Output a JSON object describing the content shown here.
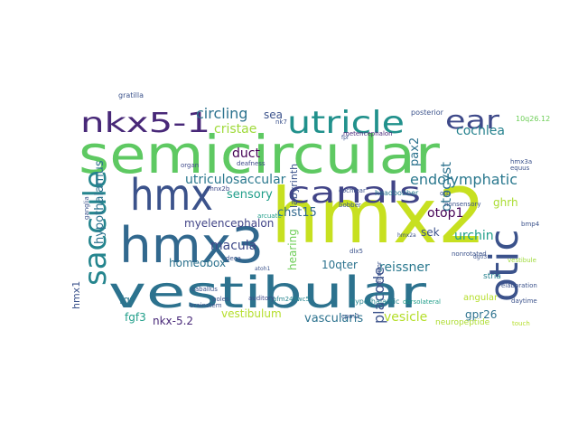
{
  "words": [
    {
      "text": "hmx2",
      "color": "#c7e020",
      "vertical": false
    },
    {
      "text": "semicircular",
      "color": "#5ec962",
      "vertical": false
    },
    {
      "text": "vestibular",
      "color": "#2c728e",
      "vertical": false
    },
    {
      "text": "hmx3",
      "color": "#31688e",
      "vertical": false
    },
    {
      "text": "hmx",
      "color": "#3b528b",
      "vertical": false
    },
    {
      "text": "saccule",
      "color": "#25858e",
      "vertical": true
    },
    {
      "text": "otic",
      "color": "#3b528b",
      "vertical": true
    },
    {
      "text": "canals",
      "color": "#414487",
      "vertical": false
    },
    {
      "text": "utricle",
      "color": "#21918c",
      "vertical": false
    },
    {
      "text": "nkx5-1",
      "color": "#482878",
      "vertical": false
    },
    {
      "text": "ear",
      "color": "#3e4989",
      "vertical": false
    },
    {
      "text": "endolymphatic",
      "color": "#2a788e",
      "vertical": false
    },
    {
      "text": "utriculosaccular",
      "color": "#2a788e",
      "vertical": false
    },
    {
      "text": "myelencephalon",
      "color": "#414487",
      "vertical": false
    },
    {
      "text": "circling",
      "color": "#2c728e",
      "vertical": false
    },
    {
      "text": "cristae",
      "color": "#9fda3a",
      "vertical": false
    },
    {
      "text": "cochlea",
      "color": "#26828e",
      "vertical": false
    },
    {
      "text": "sea",
      "color": "#3b528b",
      "vertical": false
    },
    {
      "text": "duct",
      "color": "#440154",
      "vertical": false
    },
    {
      "text": "sensory",
      "color": "#1f9e89",
      "vertical": false
    },
    {
      "text": "chst15",
      "color": "#31688e",
      "vertical": false
    },
    {
      "text": "hypothalamus",
      "color": "#2c728e",
      "vertical": true
    },
    {
      "text": "macula",
      "color": "#3e4989",
      "vertical": false
    },
    {
      "text": "homeobox",
      "color": "#2c728e",
      "vertical": false
    },
    {
      "text": "vestibulum",
      "color": "#b5de2b",
      "vertical": false
    },
    {
      "text": "vascularis",
      "color": "#2c728e",
      "vertical": false
    },
    {
      "text": "vesicle",
      "color": "#b5de2b",
      "vertical": false
    },
    {
      "text": "reissner",
      "color": "#2a788e",
      "vertical": false
    },
    {
      "text": "placode",
      "color": "#3b528b",
      "vertical": true
    },
    {
      "text": "otocyst",
      "color": "#2c728e",
      "vertical": true
    },
    {
      "text": "urchin",
      "color": "#1f9e89",
      "vertical": false
    },
    {
      "text": "otop1",
      "color": "#440154",
      "vertical": false
    },
    {
      "text": "ghrh",
      "color": "#aadc32",
      "vertical": false
    },
    {
      "text": "sek",
      "color": "#3b528b",
      "vertical": false
    },
    {
      "text": "10qter",
      "color": "#2c728e",
      "vertical": false
    },
    {
      "text": "gpr26",
      "color": "#2c728e",
      "vertical": false
    },
    {
      "text": "nkx-5.2",
      "color": "#482878",
      "vertical": false
    },
    {
      "text": "fgf3",
      "color": "#1f9e89",
      "vertical": false
    },
    {
      "text": "fgf",
      "color": "#2a788e",
      "vertical": false
    },
    {
      "text": "hmx1",
      "color": "#3b528b",
      "vertical": true
    },
    {
      "text": "pax2",
      "color": "#2c728e",
      "vertical": true
    },
    {
      "text": "hearing",
      "color": "#6ece58",
      "vertical": true
    },
    {
      "text": "labyrinth",
      "color": "#3b528b",
      "vertical": true
    },
    {
      "text": "neuropeptide",
      "color": "#addc30",
      "vertical": false
    },
    {
      "text": "angular",
      "color": "#b5de2b",
      "vertical": false
    },
    {
      "text": "stria",
      "color": "#26828e",
      "vertical": false
    },
    {
      "text": "auditory",
      "color": "#3e4989",
      "vertical": false
    },
    {
      "text": "caballus",
      "color": "#3b528b",
      "vertical": false
    },
    {
      "text": "brainstem",
      "color": "#3b528b",
      "vertical": false
    },
    {
      "text": "afm249wc5",
      "color": "#25858e",
      "vertical": false
    },
    {
      "text": "dorsolateral",
      "color": "#1f9e89",
      "vertical": false
    },
    {
      "text": "hypothalamic",
      "color": "#25858e",
      "vertical": false
    },
    {
      "text": "deafness",
      "color": "#3e4989",
      "vertical": false
    },
    {
      "text": "arcuate",
      "color": "#1f9e89",
      "vertical": false
    },
    {
      "text": "mnx2b",
      "color": "#3e4989",
      "vertical": false
    },
    {
      "text": "organ",
      "color": "#3e4989",
      "vertical": false
    },
    {
      "text": "nk7",
      "color": "#3b528b",
      "vertical": false
    },
    {
      "text": "cochlear",
      "color": "#3b528b",
      "vertical": false
    },
    {
      "text": "headbobber",
      "color": "#2a788e",
      "vertical": false
    },
    {
      "text": "bobber",
      "color": "#3b528b",
      "vertical": false
    },
    {
      "text": "posterior",
      "color": "#3b528b",
      "vertical": false
    },
    {
      "text": "metencephalon",
      "color": "#482878",
      "vertical": false
    },
    {
      "text": "gratilla",
      "color": "#3b528b",
      "vertical": false
    },
    {
      "text": "equus",
      "color": "#3b528b",
      "vertical": false
    },
    {
      "text": "otp",
      "color": "#3b528b",
      "vertical": false
    },
    {
      "text": "nonsensory",
      "color": "#3b528b",
      "vertical": false
    },
    {
      "text": "ganglia",
      "color": "#3b528b",
      "vertical": true
    },
    {
      "text": "dlx5",
      "color": "#3b528b",
      "vertical": false
    },
    {
      "text": "deca",
      "color": "#3b528b",
      "vertical": false
    },
    {
      "text": "hmx3a",
      "color": "#3b528b",
      "vertical": false
    },
    {
      "text": "10q26.12",
      "color": "#6ece58",
      "vertical": false
    },
    {
      "text": "vestibule",
      "color": "#9fda3a",
      "vertical": false
    },
    {
      "text": "daytime",
      "color": "#3b528b",
      "vertical": false
    },
    {
      "text": "nonrotated",
      "color": "#3b528b",
      "vertical": false
    },
    {
      "text": "elaboration",
      "color": "#3b528b",
      "vertical": false
    },
    {
      "text": "atoh1",
      "color": "#3b528b",
      "vertical": false
    },
    {
      "text": "hmx2a",
      "color": "#3b528b",
      "vertical": false
    },
    {
      "text": "fpf",
      "color": "#3b528b",
      "vertical": false
    },
    {
      "text": "touch",
      "color": "#b5de2b",
      "vertical": false
    },
    {
      "text": "bmp4",
      "color": "#3b528b",
      "vertical": false
    },
    {
      "text": "anterior",
      "color": "#3b528b",
      "vertical": true
    },
    {
      "text": "cpm2",
      "color": "#3b528b",
      "vertical": false
    },
    {
      "text": "poles",
      "color": "#3b528b",
      "vertical": false
    },
    {
      "text": "dg03",
      "color": "#3b528b",
      "vertical": false
    }
  ]
}
